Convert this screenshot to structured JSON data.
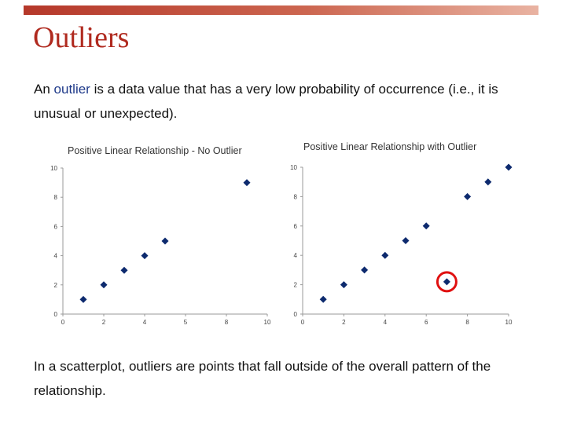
{
  "slide": {
    "title": "Outliers",
    "para1": {
      "pre": "An ",
      "highlight": "outlier",
      "post": " is a data value that has a very low probability of occurrence (i.e., it is unusual or unexpected)."
    },
    "para2": "In a scatterplot, outliers are points that fall outside of the overall pattern of the relationship.",
    "colors": {
      "title": "#b02a1f",
      "highlight": "#1f3a8a",
      "marker": "#0d2a6e",
      "outlier_circle": "#e01010"
    }
  },
  "chart_data": [
    {
      "type": "scatter",
      "title": "Positive Linear Relationship - No Outlier",
      "xlim": [
        0,
        10
      ],
      "ylim": [
        0,
        10
      ],
      "x_ticks": [
        "0",
        "2",
        "4",
        "5",
        "8",
        "10"
      ],
      "y_ticks": [
        "10",
        "8",
        "6",
        "4",
        "2",
        "0"
      ],
      "grid": false,
      "points": [
        {
          "x": 1,
          "y": 1
        },
        {
          "x": 2,
          "y": 2
        },
        {
          "x": 3,
          "y": 3
        },
        {
          "x": 4,
          "y": 4
        },
        {
          "x": 5,
          "y": 5
        },
        {
          "x": 9,
          "y": 9
        }
      ]
    },
    {
      "type": "scatter",
      "title": "Positive Linear Relationship with Outlier",
      "xlim": [
        0,
        10
      ],
      "ylim": [
        0,
        10
      ],
      "x_ticks": [
        "0",
        "2",
        "4",
        "6",
        "8",
        "10"
      ],
      "y_ticks": [
        "10",
        "8",
        "6",
        "4",
        "2",
        "0"
      ],
      "grid": false,
      "points": [
        {
          "x": 1,
          "y": 1
        },
        {
          "x": 2,
          "y": 2
        },
        {
          "x": 3,
          "y": 3
        },
        {
          "x": 4,
          "y": 4
        },
        {
          "x": 5,
          "y": 5
        },
        {
          "x": 6,
          "y": 6
        },
        {
          "x": 7,
          "y": 2.2,
          "outlier": true
        },
        {
          "x": 8,
          "y": 8
        },
        {
          "x": 9,
          "y": 9
        },
        {
          "x": 10,
          "y": 10
        }
      ]
    }
  ]
}
